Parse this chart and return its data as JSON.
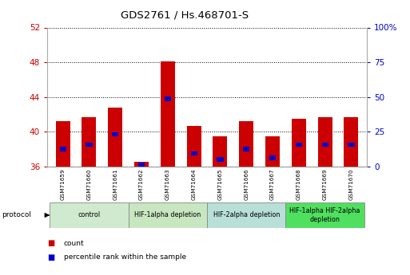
{
  "title": "GDS2761 / Hs.468701-S",
  "samples": [
    "GSM71659",
    "GSM71660",
    "GSM71661",
    "GSM71662",
    "GSM71663",
    "GSM71664",
    "GSM71665",
    "GSM71666",
    "GSM71667",
    "GSM71668",
    "GSM71669",
    "GSM71670"
  ],
  "count_values": [
    41.2,
    41.7,
    42.8,
    36.5,
    48.1,
    40.7,
    39.5,
    41.2,
    39.5,
    41.5,
    41.7,
    41.7
  ],
  "percentile_values": [
    38.0,
    38.5,
    39.7,
    36.2,
    43.8,
    37.5,
    36.8,
    38.0,
    37.0,
    38.5,
    38.5,
    38.5
  ],
  "ylim_left": [
    36,
    52
  ],
  "ylim_right": [
    0,
    100
  ],
  "yticks_left": [
    36,
    40,
    44,
    48,
    52
  ],
  "yticks_right": [
    0,
    25,
    50,
    75,
    100
  ],
  "bar_color": "#cc0000",
  "percentile_color": "#0000cc",
  "bar_width": 0.55,
  "groups": [
    {
      "label": "control",
      "start": 0,
      "end": 3
    },
    {
      "label": "HIF-1alpha depletion",
      "start": 3,
      "end": 6
    },
    {
      "label": "HIF-2alpha depletion",
      "start": 6,
      "end": 9
    },
    {
      "label": "HIF-1alpha HIF-2alpha\ndepletion",
      "start": 9,
      "end": 12
    }
  ],
  "group_colors": [
    "#d0ead0",
    "#c8e6c0",
    "#b8dfd8",
    "#50e060"
  ],
  "protocol_label": "protocol",
  "legend_count": "count",
  "legend_percentile": "percentile rank within the sample",
  "tick_color_left": "#cc0000",
  "tick_color_right": "#0000cc",
  "background_color": "#ffffff",
  "xticklabel_bg": "#cccccc"
}
